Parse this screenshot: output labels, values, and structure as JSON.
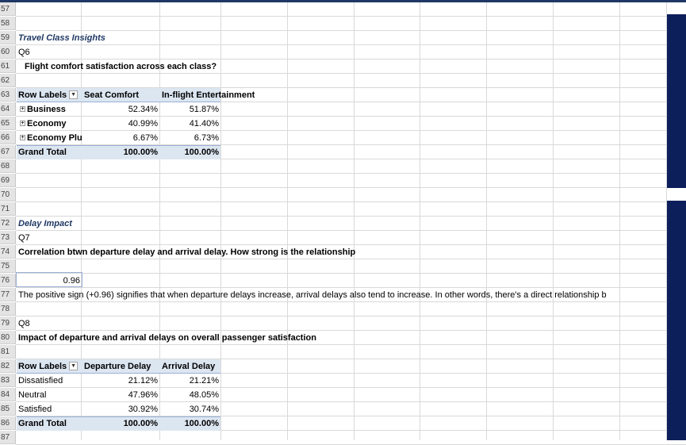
{
  "rows": [
    "57",
    "58",
    "59",
    "60",
    "61",
    "62",
    "63",
    "64",
    "65",
    "66",
    "67",
    "68",
    "69",
    "70",
    "71",
    "72",
    "73",
    "74",
    "75",
    "76",
    "77",
    "78",
    "79",
    "80",
    "81",
    "82",
    "83",
    "84",
    "85",
    "86",
    "87"
  ],
  "section1": {
    "title": "Travel Class Insights",
    "qid": "Q6",
    "question": "Flight comfort satisfaction across each class?",
    "pivot": {
      "row_labels": "Row Labels",
      "col1": "Seat Comfort",
      "col2": "In-flight Entertainment",
      "rows": [
        {
          "label": "Business",
          "v1": "52.34%",
          "v2": "51.87%"
        },
        {
          "label": "Economy",
          "v1": "40.99%",
          "v2": "41.40%"
        },
        {
          "label": "Economy Plu",
          "v1": "6.67%",
          "v2": "6.73%"
        }
      ],
      "total_label": "Grand Total",
      "total_v1": "100.00%",
      "total_v2": "100.00%"
    }
  },
  "section2": {
    "title": "Delay Impact",
    "qid": "Q7",
    "question": "Correlation btwn departure delay and arrival delay. How strong is the relationship",
    "value": "0.96",
    "note": "The positive sign (+0.96) signifies that when departure delays increase, arrival delays also tend to increase. In other words, there's a direct relationship b",
    "qid2": "Q8",
    "question2": "Impact of departure and arrival delays on overall passenger satisfaction",
    "pivot": {
      "row_labels": "Row Labels",
      "col1": "Departure Delay",
      "col2": "Arrival Delay",
      "rows": [
        {
          "label": "Dissatisfied",
          "v1": "21.12%",
          "v2": "21.21%"
        },
        {
          "label": "Neutral",
          "v1": "47.96%",
          "v2": "48.05%"
        },
        {
          "label": "Satisfied",
          "v1": "30.92%",
          "v2": "30.74%"
        }
      ],
      "total_label": "Grand Total",
      "total_v1": "100.00%",
      "total_v2": "100.00%"
    }
  },
  "colors": {
    "navy": "#0d1f5b",
    "pivot_header": "#dce6f1",
    "title": "#1f3864"
  }
}
